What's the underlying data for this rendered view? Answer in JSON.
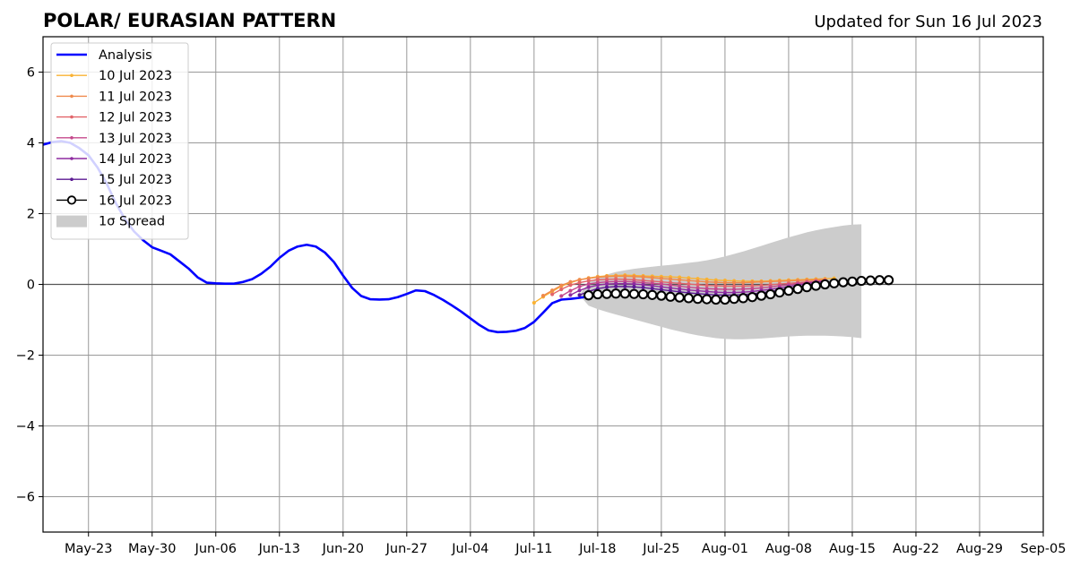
{
  "chart_data": {
    "type": "line",
    "title": "POLAR/ EURASIAN  PATTERN",
    "subtitle": "Updated for Sun 16 Jul 2023",
    "xlabel": "",
    "ylabel": "",
    "xlim": [
      "2023-05-18",
      "2023-09-05"
    ],
    "ylim": [
      -7,
      7
    ],
    "yticks": [
      -6,
      -4,
      -2,
      0,
      2,
      4,
      6
    ],
    "xticks": [
      {
        "date": "2023-05-23",
        "label": "May-23"
      },
      {
        "date": "2023-05-30",
        "label": "May-30"
      },
      {
        "date": "2023-06-06",
        "label": "Jun-06"
      },
      {
        "date": "2023-06-13",
        "label": "Jun-13"
      },
      {
        "date": "2023-06-20",
        "label": "Jun-20"
      },
      {
        "date": "2023-06-27",
        "label": "Jun-27"
      },
      {
        "date": "2023-07-04",
        "label": "Jul-04"
      },
      {
        "date": "2023-07-11",
        "label": "Jul-11"
      },
      {
        "date": "2023-07-18",
        "label": "Jul-18"
      },
      {
        "date": "2023-07-25",
        "label": "Jul-25"
      },
      {
        "date": "2023-08-01",
        "label": "Aug-01"
      },
      {
        "date": "2023-08-08",
        "label": "Aug-08"
      },
      {
        "date": "2023-08-15",
        "label": "Aug-15"
      },
      {
        "date": "2023-08-22",
        "label": "Aug-22"
      },
      {
        "date": "2023-08-29",
        "label": "Aug-29"
      },
      {
        "date": "2023-09-05",
        "label": "Sep-05"
      }
    ],
    "grid": true,
    "legend_position": "top-left",
    "zero_line": true,
    "analysis": {
      "name": "Analysis",
      "color": "#0000ff",
      "start": "2023-05-18",
      "values": [
        3.95,
        4.02,
        4.05,
        4.0,
        3.85,
        3.65,
        3.3,
        2.85,
        2.3,
        1.85,
        1.5,
        1.25,
        1.05,
        0.95,
        0.85,
        0.65,
        0.45,
        0.2,
        0.05,
        0.03,
        0.02,
        0.02,
        0.07,
        0.15,
        0.3,
        0.5,
        0.75,
        0.95,
        1.07,
        1.12,
        1.07,
        0.9,
        0.63,
        0.25,
        -0.1,
        -0.33,
        -0.42,
        -0.43,
        -0.42,
        -0.36,
        -0.27,
        -0.17,
        -0.19,
        -0.3,
        -0.44,
        -0.6,
        -0.77,
        -0.96,
        -1.15,
        -1.3,
        -1.35,
        -1.34,
        -1.31,
        -1.23,
        -1.06,
        -0.8,
        -0.53,
        -0.43,
        -0.41,
        -0.38,
        -0.34,
        -0.3
      ]
    },
    "forecasts": [
      {
        "name": "10 Jul 2023",
        "color": "#f9b233",
        "start": "2023-07-11",
        "values": [
          -0.52,
          -0.35,
          -0.2,
          -0.05,
          0.05,
          0.13,
          0.18,
          0.22,
          0.24,
          0.25,
          0.26,
          0.25,
          0.24,
          0.23,
          0.22,
          0.21,
          0.2,
          0.18,
          0.16,
          0.14,
          0.12,
          0.11,
          0.1,
          0.09,
          0.09,
          0.09,
          0.1,
          0.11,
          0.12,
          0.13,
          0.14,
          0.15,
          0.16,
          0.17
        ]
      },
      {
        "name": "11 Jul 2023",
        "color": "#ef8a4c",
        "start": "2023-07-12",
        "values": [
          -0.32,
          -0.17,
          -0.03,
          0.07,
          0.13,
          0.17,
          0.2,
          0.22,
          0.23,
          0.23,
          0.22,
          0.21,
          0.19,
          0.17,
          0.15,
          0.13,
          0.11,
          0.09,
          0.07,
          0.06,
          0.05,
          0.05,
          0.05,
          0.06,
          0.07,
          0.08,
          0.09,
          0.1,
          0.11,
          0.12,
          0.13,
          0.14
        ]
      },
      {
        "name": "12 Jul 2023",
        "color": "#e2656a",
        "start": "2023-07-13",
        "values": [
          -0.28,
          -0.14,
          -0.02,
          0.05,
          0.1,
          0.13,
          0.14,
          0.15,
          0.14,
          0.13,
          0.11,
          0.09,
          0.07,
          0.05,
          0.03,
          0.01,
          -0.01,
          -0.03,
          -0.04,
          -0.05,
          -0.05,
          -0.05,
          -0.04,
          -0.03,
          -0.01,
          0.01,
          0.03,
          0.05,
          0.07,
          0.09,
          0.11
        ]
      },
      {
        "name": "13 Jul 2023",
        "color": "#c4488c",
        "start": "2023-07-14",
        "values": [
          -0.33,
          -0.18,
          -0.06,
          0.01,
          0.05,
          0.07,
          0.08,
          0.08,
          0.07,
          0.05,
          0.03,
          0.01,
          -0.02,
          -0.05,
          -0.08,
          -0.1,
          -0.12,
          -0.13,
          -0.14,
          -0.14,
          -0.13,
          -0.12,
          -0.1,
          -0.07,
          -0.04,
          -0.01,
          0.02,
          0.05,
          0.08,
          0.1
        ]
      },
      {
        "name": "14 Jul 2023",
        "color": "#8e2ba0",
        "start": "2023-07-15",
        "values": [
          -0.3,
          -0.17,
          -0.08,
          -0.02,
          0.01,
          0.02,
          0.02,
          0.01,
          -0.01,
          -0.04,
          -0.07,
          -0.1,
          -0.13,
          -0.16,
          -0.18,
          -0.2,
          -0.22,
          -0.23,
          -0.23,
          -0.22,
          -0.2,
          -0.17,
          -0.14,
          -0.1,
          -0.06,
          -0.02,
          0.02,
          0.06,
          0.09
        ]
      },
      {
        "name": "15 Jul 2023",
        "color": "#5b1a93",
        "start": "2023-07-16",
        "values": [
          -0.3,
          -0.2,
          -0.12,
          -0.08,
          -0.06,
          -0.06,
          -0.07,
          -0.09,
          -0.12,
          -0.15,
          -0.18,
          -0.21,
          -0.24,
          -0.26,
          -0.28,
          -0.3,
          -0.3,
          -0.3,
          -0.29,
          -0.27,
          -0.24,
          -0.2,
          -0.16,
          -0.12,
          -0.08,
          -0.04,
          0.0,
          0.04
        ]
      },
      {
        "name": "16 Jul 2023",
        "color": "#000000",
        "start": "2023-07-17",
        "values": [
          -0.31,
          -0.28,
          -0.27,
          -0.26,
          -0.26,
          -0.27,
          -0.28,
          -0.3,
          -0.32,
          -0.35,
          -0.37,
          -0.39,
          -0.41,
          -0.42,
          -0.43,
          -0.43,
          -0.41,
          -0.39,
          -0.36,
          -0.32,
          -0.28,
          -0.23,
          -0.18,
          -0.13,
          -0.08,
          -0.04,
          0.0,
          0.03,
          0.06,
          0.08,
          0.1,
          0.11,
          0.12,
          0.12
        ]
      }
    ],
    "spread": {
      "name": "1σ Spread",
      "color": "#cccccc",
      "start": "2023-07-16",
      "upper": [
        -0.3,
        0.05,
        0.2,
        0.28,
        0.35,
        0.4,
        0.44,
        0.47,
        0.5,
        0.53,
        0.55,
        0.58,
        0.61,
        0.64,
        0.68,
        0.73,
        0.79,
        0.86,
        0.93,
        1.01,
        1.09,
        1.17,
        1.25,
        1.33,
        1.4,
        1.47,
        1.53,
        1.58,
        1.62,
        1.66,
        1.69,
        1.7
      ],
      "lower": [
        -0.3,
        -0.6,
        -0.7,
        -0.78,
        -0.85,
        -0.92,
        -0.99,
        -1.06,
        -1.13,
        -1.2,
        -1.27,
        -1.33,
        -1.39,
        -1.44,
        -1.48,
        -1.52,
        -1.54,
        -1.55,
        -1.55,
        -1.54,
        -1.53,
        -1.51,
        -1.49,
        -1.47,
        -1.46,
        -1.45,
        -1.45,
        -1.45,
        -1.46,
        -1.47,
        -1.49,
        -1.52
      ]
    }
  }
}
